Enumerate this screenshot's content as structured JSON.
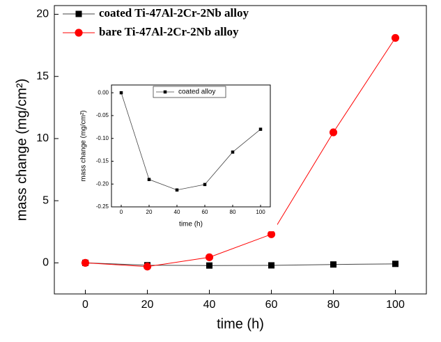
{
  "chart_data": [
    {
      "type": "line",
      "xlabel": "time (h)",
      "ylabel": "mass change (mg/cm²)",
      "x": [
        0,
        20,
        40,
        60,
        80,
        100
      ],
      "series": [
        {
          "name": "coated Ti-47Al-2Cr-2Nb alloy",
          "color": "#000000",
          "marker": "square",
          "values": [
            0,
            -0.19,
            -0.213,
            -0.201,
            -0.13,
            -0.08
          ]
        },
        {
          "name": "bare Ti-47Al-2Cr-2Nb alloy",
          "color": "#ff0000",
          "marker": "circle",
          "values": [
            0,
            -0.3,
            0.45,
            2.3,
            10.5,
            18.1
          ]
        }
      ],
      "xlim": [
        -10,
        110
      ],
      "xticks": [
        0,
        20,
        40,
        60,
        80,
        100
      ],
      "ylim": [
        -2.5,
        20.7
      ],
      "yticks": [
        0,
        5,
        10,
        15,
        20
      ],
      "legend": "upper left"
    },
    {
      "type": "line",
      "xlabel": "time (h)",
      "ylabel": "mass change (mg/cm²)",
      "x": [
        0,
        20,
        40,
        60,
        80,
        100
      ],
      "series": [
        {
          "name": "coated alloy",
          "color": "#000000",
          "marker": "square",
          "values": [
            0,
            -0.19,
            -0.213,
            -0.201,
            -0.13,
            -0.08
          ]
        }
      ],
      "xlim": [
        -7,
        107
      ],
      "xticks": [
        0,
        20,
        40,
        60,
        80,
        100
      ],
      "ylim": [
        -0.25,
        0.017
      ],
      "yticks": [
        {
          "value": 0,
          "label": "0.00"
        },
        {
          "value": -0.05,
          "label": "-0.05"
        },
        {
          "value": -0.1,
          "label": "-0.10"
        },
        {
          "value": -0.15,
          "label": "-0.15"
        },
        {
          "value": -0.2,
          "label": "-0.20"
        },
        {
          "value": -0.25,
          "label": "-0.25"
        }
      ],
      "legend": "upper center"
    }
  ]
}
